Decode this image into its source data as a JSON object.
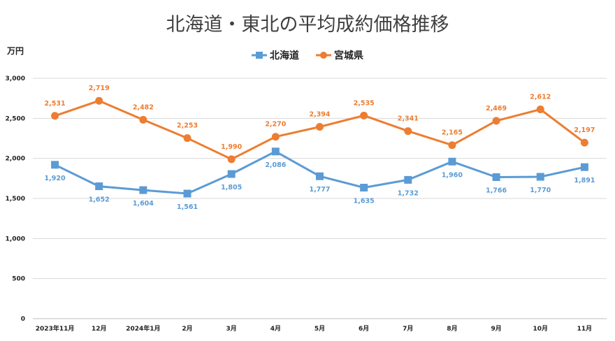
{
  "chart_data": {
    "type": "line",
    "title": "北海道・東北の平均成約価格推移",
    "ylabel": "万円",
    "xlabel": "",
    "ylim": [
      0,
      3000
    ],
    "yticks": [
      "0",
      "500",
      "1,000",
      "1,500",
      "2,000",
      "2,500",
      "3,000"
    ],
    "categories": [
      "2023年11月",
      "12月",
      "2024年1月",
      "2月",
      "3月",
      "4月",
      "5月",
      "6月",
      "7月",
      "8月",
      "9月",
      "10月",
      "11月"
    ],
    "grid": true,
    "legend_position": "top-center",
    "series": [
      {
        "name": "北海道",
        "color": "#5b9bd5",
        "marker": "square",
        "values": [
          1920,
          1652,
          1604,
          1561,
          1805,
          2086,
          1777,
          1635,
          1732,
          1960,
          1766,
          1770,
          1891
        ],
        "labels": [
          "1,920",
          "1,652",
          "1,604",
          "1,561",
          "1,805",
          "2,086",
          "1,777",
          "1,635",
          "1,732",
          "1,960",
          "1,766",
          "1,770",
          "1,891"
        ],
        "label_position": "below"
      },
      {
        "name": "宮城県",
        "color": "#ed7d31",
        "marker": "circle",
        "values": [
          2531,
          2719,
          2482,
          2253,
          1990,
          2270,
          2394,
          2535,
          2341,
          2165,
          2469,
          2612,
          2197
        ],
        "labels": [
          "2,531",
          "2,719",
          "2,482",
          "2,253",
          "1,990",
          "2,270",
          "2,394",
          "2,535",
          "2,341",
          "2,165",
          "2,469",
          "2,612",
          "2,197"
        ],
        "label_position": "above"
      }
    ]
  }
}
